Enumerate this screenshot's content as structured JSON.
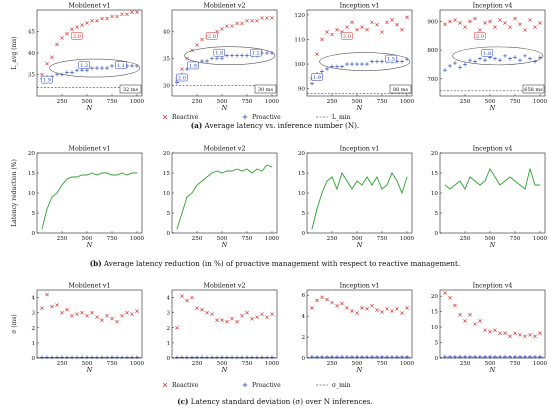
{
  "figure": {
    "caption_a_label": "(a)",
    "caption_a": "Average latency vs. inference number (N).",
    "caption_b_label": "(b)",
    "caption_b": "Average latency reduction (in %) of proactive management with respect to reactive management.",
    "caption_c_label": "(c)",
    "caption_c": "Latency standard deviation (σ) over N inferences.",
    "colors": {
      "reactive": "#d62728",
      "proactive": "#1f3fbf",
      "reduction": "#2ca02c",
      "ellipse": "#555555"
    }
  },
  "legends": {
    "row_a": {
      "reactive": "Reactive",
      "proactive": "Proactive",
      "min": "L_min"
    },
    "row_c": {
      "reactive": "Reactive",
      "proactive": "Proactive",
      "min": "σ_min"
    }
  },
  "chart_data": [
    {
      "row": "a",
      "type": "scatter",
      "title": "Mobilenet v1",
      "xlabel": "N",
      "ylabel": "L_avg (ms)",
      "xlim": [
        0,
        1050
      ],
      "ylim": [
        30,
        50
      ],
      "xticks": [
        250,
        500,
        750,
        1000
      ],
      "yticks": [
        35,
        40,
        45
      ],
      "x": [
        50,
        100,
        150,
        200,
        250,
        300,
        350,
        400,
        450,
        500,
        550,
        600,
        650,
        700,
        750,
        800,
        850,
        900,
        950,
        1000
      ],
      "series": [
        {
          "name": "Reactive",
          "marker": "x",
          "values": [
            35,
            37.5,
            39,
            42,
            43.5,
            44.5,
            45.5,
            46,
            46.5,
            47,
            47.5,
            47.5,
            48,
            48,
            48.5,
            48.5,
            49,
            49,
            49.5,
            49.5
          ]
        },
        {
          "name": "Proactive",
          "marker": "+",
          "values": [
            34,
            34.5,
            34.5,
            35,
            35,
            35.5,
            35.5,
            36,
            36,
            36,
            36.5,
            36.5,
            36.5,
            36.5,
            37,
            37,
            37,
            37,
            37,
            37
          ]
        }
      ],
      "min_line": 32,
      "annotations": {
        "ratio_top": "2.0",
        "ratio_left": "1.9",
        "ratio_mid": "1.2",
        "ratio_right": "1.1",
        "min_label": "32 ms"
      }
    },
    {
      "row": "a",
      "type": "scatter",
      "title": "Mobilenet v2",
      "xlabel": "N",
      "ylabel": "",
      "xlim": [
        0,
        1050
      ],
      "ylim": [
        28,
        44
      ],
      "xticks": [
        250,
        500,
        750,
        1000
      ],
      "yticks": [
        30,
        35,
        40
      ],
      "x": [
        50,
        100,
        150,
        200,
        250,
        300,
        350,
        400,
        450,
        500,
        550,
        600,
        650,
        700,
        750,
        800,
        850,
        900,
        950,
        1000
      ],
      "series": [
        {
          "name": "Reactive",
          "marker": "x",
          "values": [
            31,
            33,
            35,
            36.5,
            37.5,
            38.5,
            39,
            39.5,
            40,
            40.5,
            41,
            41,
            41.5,
            41.5,
            42,
            42,
            42,
            42.5,
            42.5,
            42.5
          ]
        },
        {
          "name": "Proactive",
          "marker": "+",
          "values": [
            30.5,
            32,
            33,
            33.5,
            34,
            34.5,
            34.5,
            35,
            35,
            35,
            35.5,
            35.5,
            35.5,
            35.5,
            35.5,
            35.5,
            35.5,
            36,
            36,
            36
          ]
        }
      ],
      "min_line": 30,
      "annotations": {
        "ratio_top": "2.0",
        "ratio_left": "2.0",
        "ratio_mid": "1.8",
        "ratio_right": "1.2",
        "ratio_mid2": "1.9",
        "min_label": "30 ms"
      }
    },
    {
      "row": "a",
      "type": "scatter",
      "title": "Inception v1",
      "xlabel": "N",
      "ylabel": "",
      "xlim": [
        0,
        1050
      ],
      "ylim": [
        87,
        122
      ],
      "xticks": [
        250,
        500,
        750,
        1000
      ],
      "yticks": [
        90,
        100,
        110,
        120
      ],
      "x": [
        50,
        100,
        150,
        200,
        250,
        300,
        350,
        400,
        450,
        500,
        550,
        600,
        650,
        700,
        750,
        800,
        850,
        900,
        950,
        1000
      ],
      "series": [
        {
          "name": "Reactive",
          "marker": "x",
          "values": [
            94,
            104,
            110,
            113,
            112,
            114,
            113,
            115,
            117,
            114,
            115,
            114,
            117,
            116,
            113,
            117,
            118,
            116,
            114,
            119
          ]
        },
        {
          "name": "Proactive",
          "marker": "+",
          "values": [
            92,
            96,
            97,
            98,
            99,
            99,
            99,
            100,
            100,
            100,
            100,
            100,
            101,
            101,
            101,
            101,
            101,
            101,
            101,
            102
          ]
        }
      ],
      "min_line": 88,
      "annotations": {
        "ratio_top": "2.0",
        "ratio_left": "1.9",
        "ratio_right": "1.5",
        "min_label": "88 ms"
      }
    },
    {
      "row": "a",
      "type": "scatter",
      "title": "Inception v4",
      "xlabel": "N",
      "ylabel": "",
      "xlim": [
        0,
        1050
      ],
      "ylim": [
        640,
        940
      ],
      "xticks": [
        250,
        500,
        750,
        1000
      ],
      "yticks": [
        700,
        800,
        900
      ],
      "x": [
        50,
        100,
        150,
        200,
        250,
        300,
        350,
        400,
        450,
        500,
        550,
        600,
        650,
        700,
        750,
        800,
        850,
        900,
        950,
        1000
      ],
      "series": [
        {
          "name": "Reactive",
          "marker": "x",
          "values": [
            890,
            900,
            905,
            895,
            880,
            900,
            910,
            870,
            895,
            900,
            880,
            905,
            895,
            880,
            910,
            890,
            870,
            905,
            880,
            895
          ]
        },
        {
          "name": "Proactive",
          "marker": "+",
          "values": [
            730,
            745,
            755,
            740,
            750,
            765,
            760,
            770,
            765,
            775,
            770,
            765,
            780,
            770,
            775,
            765,
            780,
            770,
            760,
            775
          ]
        }
      ],
      "min_line": 658,
      "annotations": {
        "ratio_top": "2.0",
        "ratio_mid": "1.8",
        "min_label": "658 ms"
      }
    },
    {
      "row": "b",
      "type": "line",
      "title": "Mobilenet v1",
      "xlabel": "N",
      "ylabel": "Latency reduction (%)",
      "xlim": [
        0,
        1050
      ],
      "ylim": [
        0,
        20
      ],
      "xticks": [
        250,
        500,
        750,
        1000
      ],
      "yticks": [
        0,
        5,
        10,
        15,
        20
      ],
      "x": [
        50,
        100,
        150,
        200,
        250,
        300,
        350,
        400,
        450,
        500,
        550,
        600,
        650,
        700,
        750,
        800,
        850,
        900,
        950,
        1000
      ],
      "series": [
        {
          "name": "",
          "values": [
            1,
            6,
            9,
            10,
            12,
            13.5,
            14,
            14,
            14.5,
            14.5,
            15,
            14.5,
            15,
            15,
            14.5,
            14.5,
            15,
            14.5,
            15,
            15
          ]
        }
      ]
    },
    {
      "row": "b",
      "type": "line",
      "title": "Mobilenet v2",
      "xlabel": "N",
      "ylabel": "",
      "xlim": [
        0,
        1050
      ],
      "ylim": [
        0,
        20
      ],
      "xticks": [
        250,
        500,
        750,
        1000
      ],
      "yticks": [
        0,
        5,
        10,
        15,
        20
      ],
      "x": [
        50,
        100,
        150,
        200,
        250,
        300,
        350,
        400,
        450,
        500,
        550,
        600,
        650,
        700,
        750,
        800,
        850,
        900,
        950,
        1000
      ],
      "series": [
        {
          "name": "",
          "values": [
            1,
            5,
            9,
            10,
            12,
            13,
            14,
            15,
            15.5,
            15,
            15.5,
            15.5,
            16,
            15.5,
            16,
            15,
            16,
            15.5,
            17,
            16.5
          ]
        }
      ]
    },
    {
      "row": "b",
      "type": "line",
      "title": "Inception v1",
      "xlabel": "N",
      "ylabel": "",
      "xlim": [
        0,
        1050
      ],
      "ylim": [
        0,
        20
      ],
      "xticks": [
        250,
        500,
        750,
        1000
      ],
      "yticks": [
        0,
        5,
        10,
        15,
        20
      ],
      "x": [
        50,
        100,
        150,
        200,
        250,
        300,
        350,
        400,
        450,
        500,
        550,
        600,
        650,
        700,
        750,
        800,
        850,
        900,
        950,
        1000
      ],
      "series": [
        {
          "name": "",
          "values": [
            1,
            6,
            10,
            13,
            14,
            11,
            15,
            13,
            11,
            13,
            12,
            14,
            12,
            14,
            11,
            12,
            15,
            13,
            10,
            14
          ]
        }
      ]
    },
    {
      "row": "b",
      "type": "line",
      "title": "Inception v4",
      "xlabel": "N",
      "ylabel": "",
      "xlim": [
        0,
        1050
      ],
      "ylim": [
        0,
        20
      ],
      "xticks": [
        250,
        500,
        750,
        1000
      ],
      "yticks": [
        0,
        5,
        10,
        15,
        20
      ],
      "x": [
        50,
        100,
        150,
        200,
        250,
        300,
        350,
        400,
        450,
        500,
        550,
        600,
        650,
        700,
        750,
        800,
        850,
        900,
        950,
        1000
      ],
      "series": [
        {
          "name": "",
          "values": [
            12,
            11,
            12,
            13,
            11,
            14,
            13,
            12,
            13,
            16,
            14,
            12,
            13,
            14,
            13,
            12,
            11,
            16,
            12,
            12
          ]
        }
      ]
    },
    {
      "row": "c",
      "type": "scatter",
      "title": "Mobilenet v1",
      "xlabel": "N",
      "ylabel": "σ (ms)",
      "xlim": [
        0,
        1050
      ],
      "ylim": [
        0,
        4.5
      ],
      "xticks": [
        250,
        500,
        750,
        1000
      ],
      "yticks": [
        0,
        1,
        2,
        3,
        4
      ],
      "x": [
        50,
        100,
        150,
        200,
        250,
        300,
        350,
        400,
        450,
        500,
        550,
        600,
        650,
        700,
        750,
        800,
        850,
        900,
        950,
        1000
      ],
      "series": [
        {
          "name": "Reactive",
          "marker": "x",
          "values": [
            3.3,
            4.2,
            3.4,
            3.5,
            3.0,
            3.2,
            2.8,
            2.9,
            3.0,
            2.8,
            3.0,
            2.7,
            2.5,
            2.8,
            2.6,
            2.4,
            2.8,
            3.0,
            2.9,
            3.1
          ]
        },
        {
          "name": "Proactive",
          "marker": "+",
          "values": [
            0.05,
            0.05,
            0.05,
            0.05,
            0.05,
            0.05,
            0.05,
            0.05,
            0.05,
            0.05,
            0.05,
            0.05,
            0.05,
            0.05,
            0.05,
            0.05,
            0.05,
            0.05,
            0.05,
            0.05
          ]
        }
      ]
    },
    {
      "row": "c",
      "type": "scatter",
      "title": "Mobilenet v2",
      "xlabel": "N",
      "ylabel": "",
      "xlim": [
        0,
        1050
      ],
      "ylim": [
        0,
        4.5
      ],
      "xticks": [
        250,
        500,
        750,
        1000
      ],
      "yticks": [
        0,
        1,
        2,
        3,
        4
      ],
      "x": [
        50,
        100,
        150,
        200,
        250,
        300,
        350,
        400,
        450,
        500,
        550,
        600,
        650,
        700,
        750,
        800,
        850,
        900,
        950,
        1000
      ],
      "series": [
        {
          "name": "Reactive",
          "marker": "x",
          "values": [
            2.0,
            4.1,
            3.8,
            4.0,
            3.3,
            3.2,
            3.0,
            2.9,
            2.5,
            2.5,
            2.4,
            2.6,
            2.4,
            2.8,
            3.0,
            2.6,
            2.7,
            2.9,
            2.7,
            2.9
          ]
        },
        {
          "name": "Proactive",
          "marker": "+",
          "values": [
            0.05,
            0.05,
            0.05,
            0.05,
            0.05,
            0.05,
            0.05,
            0.05,
            0.05,
            0.05,
            0.05,
            0.05,
            0.05,
            0.05,
            0.05,
            0.05,
            0.05,
            0.05,
            0.05,
            0.05
          ]
        }
      ]
    },
    {
      "row": "c",
      "type": "scatter",
      "title": "Inception v1",
      "xlabel": "N",
      "ylabel": "",
      "xlim": [
        0,
        1050
      ],
      "ylim": [
        0,
        6.5
      ],
      "xticks": [
        250,
        500,
        750,
        1000
      ],
      "yticks": [
        0,
        2,
        4,
        6
      ],
      "x": [
        50,
        100,
        150,
        200,
        250,
        300,
        350,
        400,
        450,
        500,
        550,
        600,
        650,
        700,
        750,
        800,
        850,
        900,
        950,
        1000
      ],
      "series": [
        {
          "name": "Reactive",
          "marker": "x",
          "values": [
            4.8,
            5.5,
            5.8,
            5.6,
            5.3,
            5.0,
            5.2,
            4.8,
            4.5,
            4.3,
            4.8,
            4.7,
            5.0,
            4.6,
            4.4,
            4.7,
            4.5,
            4.7,
            4.3,
            4.8
          ]
        },
        {
          "name": "Proactive",
          "marker": "+",
          "values": [
            0.1,
            0.1,
            0.1,
            0.1,
            0.1,
            0.1,
            0.1,
            0.1,
            0.1,
            0.1,
            0.1,
            0.1,
            0.1,
            0.1,
            0.1,
            0.1,
            0.1,
            0.1,
            0.1,
            0.1
          ]
        }
      ]
    },
    {
      "row": "c",
      "type": "scatter",
      "title": "Inception v4",
      "xlabel": "N",
      "ylabel": "",
      "xlim": [
        0,
        1050
      ],
      "ylim": [
        0,
        22
      ],
      "xticks": [
        250,
        500,
        750,
        1000
      ],
      "yticks": [
        0,
        5,
        10,
        15,
        20
      ],
      "x": [
        50,
        100,
        150,
        200,
        250,
        300,
        350,
        400,
        450,
        500,
        550,
        600,
        650,
        700,
        750,
        800,
        850,
        900,
        950,
        1000
      ],
      "series": [
        {
          "name": "Reactive",
          "marker": "x",
          "values": [
            21,
            19.5,
            17,
            14,
            12,
            14,
            11,
            12,
            9,
            8.5,
            9,
            8,
            8,
            7,
            8,
            7.5,
            7,
            7.5,
            7,
            8
          ]
        },
        {
          "name": "Proactive",
          "marker": "+",
          "values": [
            0.4,
            0.4,
            0.4,
            0.4,
            0.4,
            0.4,
            0.4,
            0.4,
            0.4,
            0.4,
            0.4,
            0.4,
            0.4,
            0.4,
            0.4,
            0.4,
            0.4,
            0.4,
            0.4,
            0.4
          ]
        }
      ]
    }
  ]
}
